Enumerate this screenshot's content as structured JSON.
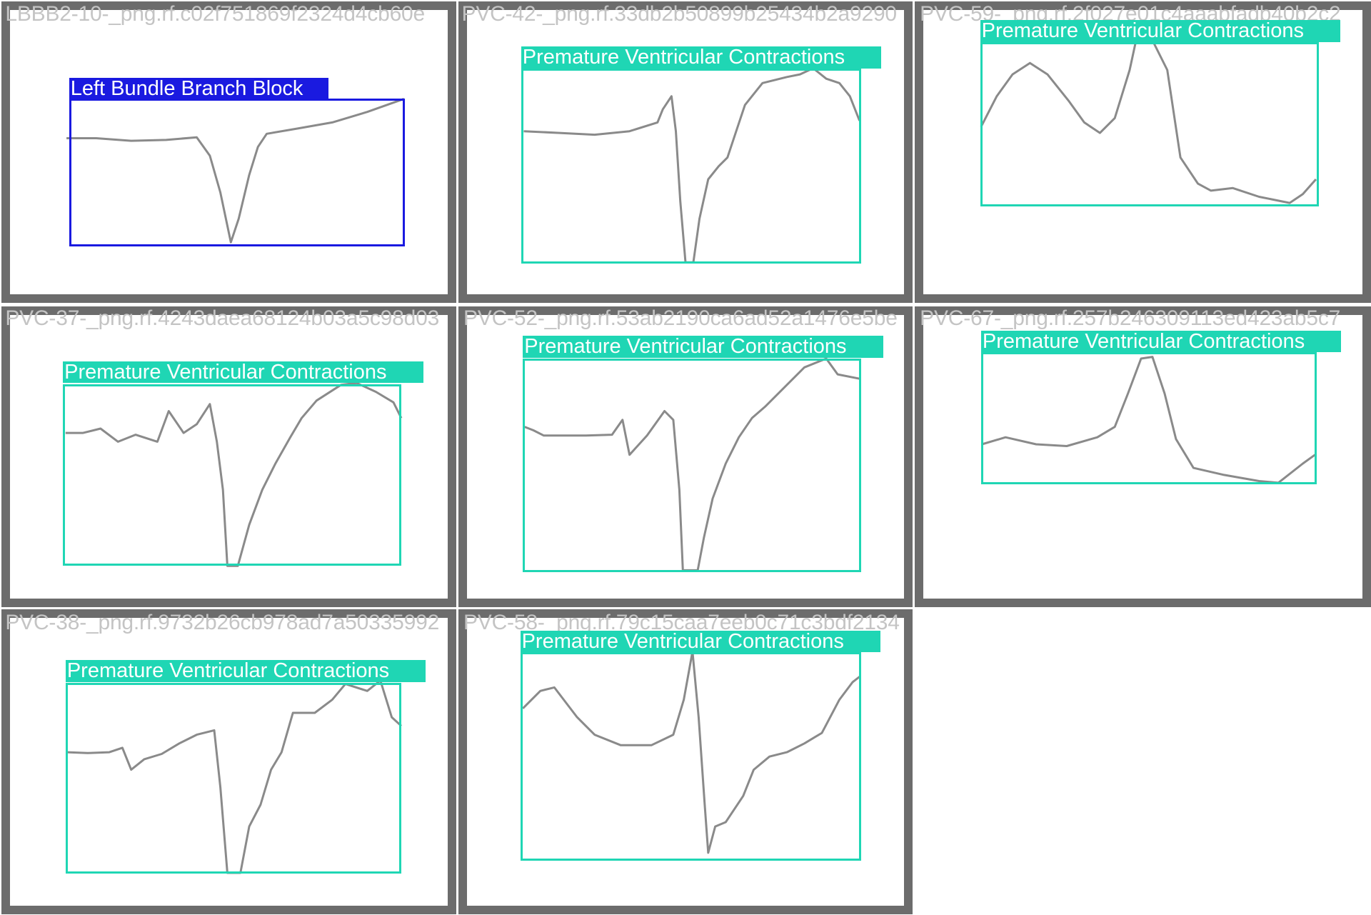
{
  "colors": {
    "pvc": "#1fd6b4",
    "lbbb": "#1a1ae0",
    "tile_border": "#6c6c6c",
    "signal": "#8a8a8a",
    "filename": "#c4c4c4"
  },
  "tiles": [
    {
      "filename": "LBBB2-10-_png.rf.c02f751869f2324d4cb60e",
      "detections": [
        {
          "label": "Left Bundle Branch Block",
          "class": "lbbb"
        }
      ]
    },
    {
      "filename": "PVC-42-_png.rf.33db2b50899b25434b2a9290",
      "detections": [
        {
          "label": "Premature Ventricular Contractions",
          "class": "pvc"
        }
      ]
    },
    {
      "filename": "PVC-59-_png.rf.2f027e01c4aaabfadb40b2c2",
      "detections": [
        {
          "label": "Premature Ventricular Contractions",
          "class": "pvc"
        }
      ]
    },
    {
      "filename": "PVC-37-_png.rf.4243daea68124b03a5c98d03",
      "detections": [
        {
          "label": "Premature Ventricular Contractions",
          "class": "pvc"
        }
      ]
    },
    {
      "filename": "PVC-52-_png.rf.53ab2190ca6ad52a1476e5be",
      "detections": [
        {
          "label": "Premature Ventricular Contractions",
          "class": "pvc"
        }
      ]
    },
    {
      "filename": "PVC-67-_png.rf.257b246309113ed423ab5c7",
      "detections": [
        {
          "label": "Premature Ventricular Contractions",
          "class": "pvc"
        }
      ]
    },
    {
      "filename": "PVC-38-_png.rf.9732b26cb978ad7a50335992",
      "detections": [
        {
          "label": "Premature Ventricular Contractions",
          "class": "pvc"
        }
      ]
    },
    {
      "filename": "PVC-58-_png.rf.79c15caa7eeb0c71c3bdf2134",
      "detections": [
        {
          "label": "Premature Ventricular Contractions",
          "class": "pvc"
        }
      ]
    }
  ]
}
